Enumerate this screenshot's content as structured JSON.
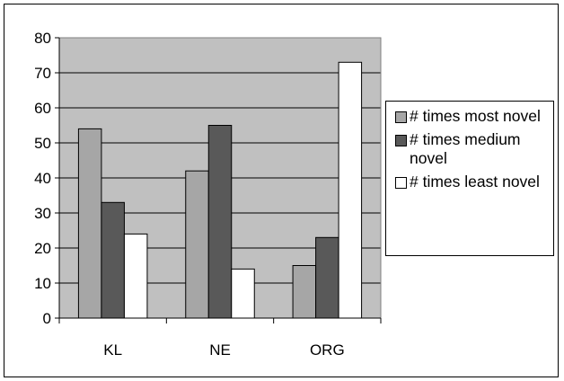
{
  "chart_data": {
    "type": "bar",
    "categories": [
      "KL",
      "NE",
      "ORG"
    ],
    "series": [
      {
        "name": "# times most novel",
        "values": [
          54,
          42,
          15
        ],
        "color": "#a6a6a6"
      },
      {
        "name": "# times medium novel",
        "values": [
          33,
          55,
          23
        ],
        "color": "#595959"
      },
      {
        "name": "# times least novel",
        "values": [
          24,
          14,
          73
        ],
        "color": "#ffffff"
      }
    ],
    "ylim": [
      0,
      80
    ],
    "yticks": [
      "0",
      "10",
      "20",
      "30",
      "40",
      "50",
      "60",
      "70",
      "80"
    ],
    "grid": true,
    "plot_background": "#c0c0c0",
    "legend_position": "right"
  }
}
